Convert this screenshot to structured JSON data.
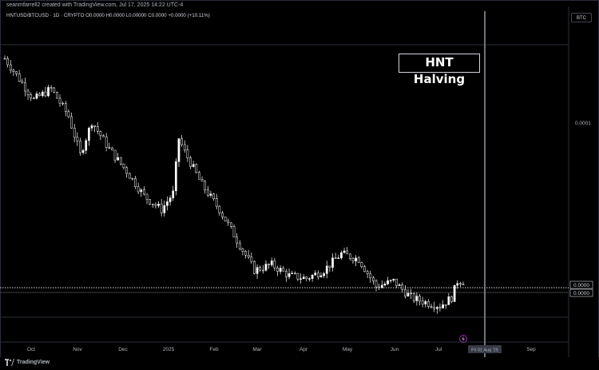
{
  "header": {
    "credit": "seanmfarrell2 created with TradingView.com, Jul 17, 2025 14:22 UTC-4",
    "symbol_line": "HNTUSD/BTCUSD · 1D · CRYPTO  O0.0000  H0.0000  L0.00000  C0.0000  +0.0000 (+10.11%)",
    "currency": "BTC"
  },
  "annotation": {
    "label": "HNT Halving"
  },
  "footer": {
    "brand": "TradingView"
  },
  "chart_data": {
    "type": "candlestick",
    "title": "",
    "xlabel": "",
    "ylabel": "",
    "x_ticks": [
      "Oct",
      "Nov",
      "Dec",
      "2025",
      "Feb",
      "Mar",
      "Apr",
      "May",
      "Jun",
      "Jul",
      "Aug",
      "Sep"
    ],
    "y_ticks": [
      "0.0001"
    ],
    "price_labels": [
      "0.0000",
      "0.0000"
    ],
    "date_tag": "Fri 01 Aug '25",
    "y_scale": "log",
    "grid": false,
    "colors": {
      "candle": "#ffffff",
      "background": "#000000",
      "vline": "#9598a1",
      "dotted": "#d1d4dc"
    },
    "series_trend": [
      [
        0,
        0.95
      ],
      [
        6,
        0.86
      ],
      [
        10,
        0.8
      ],
      [
        16,
        0.84
      ],
      [
        22,
        0.74
      ],
      [
        26,
        0.6
      ],
      [
        30,
        0.72
      ],
      [
        36,
        0.62
      ],
      [
        42,
        0.54
      ],
      [
        48,
        0.45
      ],
      [
        54,
        0.4
      ],
      [
        58,
        0.46
      ],
      [
        60,
        0.66
      ],
      [
        62,
        0.61
      ],
      [
        68,
        0.49
      ],
      [
        74,
        0.4
      ],
      [
        80,
        0.29
      ],
      [
        86,
        0.18
      ],
      [
        92,
        0.2
      ],
      [
        98,
        0.16
      ],
      [
        104,
        0.15
      ],
      [
        110,
        0.18
      ],
      [
        116,
        0.24
      ],
      [
        122,
        0.22
      ],
      [
        128,
        0.12
      ],
      [
        134,
        0.14
      ],
      [
        140,
        0.08
      ],
      [
        146,
        0.06
      ],
      [
        150,
        0.05
      ],
      [
        154,
        0.08
      ],
      [
        156,
        0.14
      ]
    ],
    "marker_icon": "lightning-icon"
  }
}
